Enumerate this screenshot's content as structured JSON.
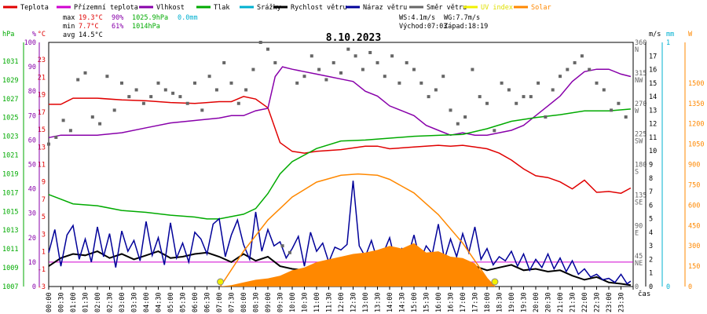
{
  "colors": {
    "teplota": "#e00000",
    "prizemni": "#d000d0",
    "vlhkost": "#8800aa",
    "tlak": "#00aa00",
    "srazky": "#00b0d0",
    "rychlost": "#000000",
    "naraz": "#000099",
    "smer": "#666666",
    "uv": "#f0f000",
    "solar": "#ff8800"
  },
  "legend": [
    {
      "label": "Teplota",
      "color": "#e00000"
    },
    {
      "label": "Přízemní teplota",
      "color": "#d000d0"
    },
    {
      "label": "Vlhkost",
      "color": "#8800aa"
    },
    {
      "label": "Tlak",
      "color": "#00aa00"
    },
    {
      "label": "Srážky",
      "color": "#00b0d0"
    },
    {
      "label": "Rychlost větru",
      "color": "#000000"
    },
    {
      "label": "Náraz větru",
      "color": "#000099"
    },
    {
      "label": "Směr větru",
      "color": "#666666"
    },
    {
      "label": "UV index",
      "color": "#f0f000"
    },
    {
      "label": "Solar",
      "color": "#ff8800"
    }
  ],
  "stats": {
    "max_label": "max",
    "max_temp": "19.3°C",
    "max_hum": "90%",
    "max_press": "1025.9hPa",
    "max_rain": "0.0mm",
    "min_label": "min",
    "min_temp": "7.7°C",
    "min_hum": "61%",
    "min_press": "1014hPa",
    "avg_label": "avg",
    "avg_temp": "14.5°C"
  },
  "wind_info": {
    "ws": "WS:4.1m/s",
    "wg": "WG:7.7m/s",
    "sunrise": "Východ:07:03",
    "sunset": "Západ:18:19"
  },
  "chart_data": {
    "type": "line",
    "title": "8.10.2023",
    "x_unit": "čas",
    "x_ticks": [
      "00:00",
      "00:30",
      "01:00",
      "01:30",
      "02:00",
      "02:30",
      "03:00",
      "03:30",
      "04:00",
      "04:30",
      "05:00",
      "05:30",
      "06:00",
      "06:30",
      "07:00",
      "07:30",
      "08:00",
      "08:30",
      "09:00",
      "09:30",
      "10:00",
      "10:30",
      "11:00",
      "11:30",
      "12:00",
      "12:30",
      "13:00",
      "13:30",
      "14:00",
      "14:30",
      "15:00",
      "15:30",
      "16:00",
      "16:30",
      "17:00",
      "17:30",
      "18:00",
      "18:30",
      "19:00",
      "19:30",
      "20:00",
      "20:30",
      "21:00",
      "21:30",
      "22:00",
      "22:30",
      "23:00",
      "23:30"
    ],
    "axes": {
      "pressure": {
        "label": "hPa",
        "range": [
          1007,
          1033
        ],
        "ticks": [
          "1031",
          "1029",
          "1027",
          "1025",
          "1023",
          "1021",
          "1019",
          "1017",
          "1015",
          "1013",
          "1011",
          "1009",
          "1007"
        ],
        "color": "#00aa00"
      },
      "humidity": {
        "label": "%",
        "range": [
          0,
          100
        ],
        "ticks": [
          "100",
          "90",
          "80",
          "70",
          "60",
          "50",
          "40",
          "30",
          "20",
          "10",
          "0"
        ],
        "color": "#8800aa"
      },
      "temperature": {
        "label": "°C",
        "range": [
          -3,
          25
        ],
        "ticks": [
          "23",
          "21",
          "19",
          "17",
          "15",
          "13",
          "11",
          "9",
          "7",
          "5",
          "3",
          "1",
          "-1",
          "-3"
        ],
        "color": "#e00000"
      },
      "wind_dir": {
        "range": [
          0,
          360
        ],
        "ticks": [
          "360\nN",
          "315\nNW",
          "270\nW",
          "225\nSW",
          "180\nS",
          "135\nSE",
          "90\nE",
          "45\nNE",
          "0"
        ],
        "color": "#666666"
      },
      "wind_speed": {
        "label": "m/s",
        "range": [
          0,
          18
        ],
        "ticks": [
          "17",
          "16",
          "15",
          "14",
          "13",
          "12",
          "11",
          "10",
          "9",
          "8",
          "7",
          "6",
          "5",
          "4",
          "3",
          "2",
          "1",
          "0"
        ],
        "color": "#000000"
      },
      "rain": {
        "label": "mm",
        "range": [
          0,
          1
        ],
        "ticks": [
          "1",
          "0"
        ],
        "color": "#00b0d0"
      },
      "solar": {
        "label": "W",
        "range": [
          0,
          1800
        ],
        "ticks": [
          "1500",
          "1350",
          "1200",
          "1050",
          "900",
          "750",
          "600",
          "450",
          "300",
          "150",
          "0"
        ],
        "color": "#ff8800"
      }
    },
    "series": [
      {
        "name": "Teplota",
        "axis": "temperature",
        "color": "#e00000",
        "x": [
          0,
          0.5,
          1,
          2,
          3,
          4,
          5,
          6,
          7,
          7.5,
          8,
          8.5,
          9,
          9.5,
          10,
          10.5,
          11,
          12,
          13,
          13.5,
          14,
          15,
          16,
          16.5,
          17,
          17.5,
          18,
          18.5,
          19,
          19.5,
          20,
          20.5,
          21,
          21.5,
          22,
          22.5,
          23,
          23.5,
          23.9
        ],
        "y": [
          17.9,
          17.9,
          18.6,
          18.6,
          18.4,
          18.3,
          18.1,
          18.0,
          18.2,
          18.2,
          18.8,
          18.5,
          17.5,
          13.5,
          12.5,
          12.3,
          12.5,
          12.7,
          13.1,
          13.1,
          12.8,
          13.0,
          13.2,
          13.1,
          13.2,
          13.0,
          12.8,
          12.3,
          11.5,
          10.5,
          9.7,
          9.5,
          9.0,
          8.2,
          9.2,
          7.8,
          7.9,
          7.7,
          8.3
        ]
      },
      {
        "name": "Vlhkost",
        "axis": "humidity",
        "color": "#8800aa",
        "x": [
          0,
          0.5,
          1,
          2,
          3,
          4,
          5,
          6,
          7,
          7.5,
          8,
          8.5,
          9,
          9.3,
          9.6,
          10,
          10.5,
          11,
          11.5,
          12,
          12.5,
          13,
          13.5,
          14,
          14.5,
          15,
          15.5,
          16,
          16.5,
          17,
          17.5,
          18,
          18.5,
          19,
          19.5,
          20,
          20.5,
          21,
          21.5,
          22,
          22.5,
          23,
          23.5,
          23.9
        ],
        "y": [
          61,
          62,
          62,
          62,
          63,
          65,
          67,
          68,
          69,
          70,
          70,
          72,
          73,
          86,
          90,
          89,
          88,
          87,
          86,
          85,
          84,
          80,
          78,
          74,
          72,
          70,
          66,
          64,
          62,
          63,
          62,
          62,
          63,
          64,
          66,
          70,
          74,
          78,
          84,
          88,
          89,
          89,
          87,
          86
        ]
      },
      {
        "name": "Tlak",
        "axis": "pressure",
        "color": "#00aa00",
        "x": [
          0,
          1,
          2,
          3,
          4,
          5,
          6,
          6.5,
          7,
          8,
          8.5,
          9,
          9.5,
          10,
          10.5,
          11,
          12,
          13,
          14,
          15,
          16,
          17,
          18,
          19,
          20,
          21,
          22,
          23,
          23.9
        ],
        "y": [
          1016.8,
          1015.8,
          1015.6,
          1015.1,
          1014.9,
          1014.6,
          1014.4,
          1014.2,
          1014.2,
          1014.7,
          1015.3,
          1016.9,
          1019.0,
          1020.3,
          1021.0,
          1021.7,
          1022.5,
          1022.6,
          1022.8,
          1023.0,
          1023.1,
          1023.2,
          1023.8,
          1024.6,
          1025.0,
          1025.3,
          1025.7,
          1025.7,
          1025.9
        ]
      },
      {
        "name": "Rychlost větru",
        "axis": "wind_speed",
        "color": "#000000",
        "x": [
          0,
          0.5,
          1,
          1.5,
          2,
          2.5,
          3,
          3.5,
          4,
          4.5,
          5,
          5.5,
          6,
          6.5,
          7,
          7.5,
          8,
          8.5,
          9,
          9.5,
          10,
          10.5,
          11,
          11.5,
          12,
          12.5,
          13,
          13.5,
          14,
          14.5,
          15,
          15.5,
          16,
          16.5,
          17,
          17.5,
          18,
          18.5,
          19,
          19.5,
          20,
          20.5,
          21,
          21.5,
          22,
          22.5,
          23,
          23.5,
          23.9
        ],
        "y": [
          1.5,
          2.1,
          2.4,
          2.3,
          2.6,
          2.1,
          2.4,
          2.0,
          2.3,
          2.6,
          2.1,
          2.2,
          2.4,
          2.5,
          2.2,
          1.8,
          2.4,
          1.9,
          2.2,
          1.5,
          1.3,
          1.2,
          1.4,
          1.1,
          1.5,
          1.4,
          1.6,
          1.3,
          1.4,
          1.6,
          1.2,
          1.8,
          1.4,
          1.6,
          1.3,
          1.5,
          1.2,
          1.4,
          1.6,
          1.2,
          1.3,
          1.1,
          1.2,
          0.8,
          0.5,
          0.7,
          0.3,
          0.2,
          0.1
        ]
      },
      {
        "name": "Náraz větru",
        "axis": "wind_speed",
        "color": "#000099",
        "x": [
          0,
          0.25,
          0.5,
          0.75,
          1,
          1.25,
          1.5,
          1.75,
          2,
          2.25,
          2.5,
          2.75,
          3,
          3.25,
          3.5,
          3.75,
          4,
          4.25,
          4.5,
          4.75,
          5,
          5.25,
          5.5,
          5.75,
          6,
          6.25,
          6.5,
          6.75,
          7,
          7.25,
          7.5,
          7.75,
          8,
          8.25,
          8.5,
          8.75,
          9,
          9.25,
          9.5,
          9.75,
          10,
          10.25,
          10.5,
          10.75,
          11,
          11.25,
          11.5,
          11.75,
          12,
          12.25,
          12.5,
          12.75,
          13,
          13.25,
          13.5,
          13.75,
          14,
          14.25,
          14.5,
          14.75,
          15,
          15.25,
          15.5,
          15.75,
          16,
          16.25,
          16.5,
          16.75,
          17,
          17.25,
          17.5,
          17.75,
          18,
          18.25,
          18.5,
          18.75,
          19,
          19.25,
          19.5,
          19.75,
          20,
          20.25,
          20.5,
          20.75,
          21,
          21.25,
          21.5,
          21.75,
          22,
          22.25,
          22.5,
          22.75,
          23,
          23.25,
          23.5,
          23.75,
          23.9
        ],
        "y": [
          2.5,
          4.2,
          1.5,
          3.8,
          4.5,
          2.0,
          3.5,
          1.8,
          4.4,
          2.2,
          3.9,
          1.4,
          4.1,
          2.6,
          3.4,
          1.9,
          4.8,
          2.3,
          3.6,
          1.6,
          4.7,
          2.1,
          3.2,
          1.8,
          4.0,
          3.5,
          2.4,
          4.6,
          5.0,
          2.2,
          3.8,
          4.9,
          3.1,
          2.0,
          5.5,
          2.6,
          4.2,
          3.0,
          3.3,
          2.1,
          2.8,
          3.7,
          1.5,
          4.0,
          2.6,
          3.2,
          1.8,
          2.9,
          2.7,
          3.1,
          7.8,
          3.0,
          2.2,
          3.4,
          1.9,
          2.5,
          3.6,
          1.7,
          2.8,
          2.2,
          3.8,
          1.9,
          3.0,
          2.4,
          4.6,
          2.0,
          3.5,
          2.2,
          3.9,
          2.5,
          4.4,
          2.0,
          2.8,
          1.6,
          2.2,
          1.9,
          2.6,
          1.5,
          2.4,
          1.2,
          2.0,
          1.4,
          2.4,
          1.3,
          2.1,
          1.1,
          1.9,
          0.9,
          1.3,
          0.7,
          0.9,
          0.5,
          0.6,
          0.3,
          0.9,
          0.2,
          0.4
        ]
      },
      {
        "name": "Směr větru",
        "axis": "wind_dir",
        "color": "#666666",
        "type": "scatter",
        "x": [
          0,
          0.3,
          0.6,
          0.9,
          1.2,
          1.5,
          1.8,
          2.1,
          2.4,
          2.7,
          3.0,
          3.3,
          3.6,
          3.9,
          4.2,
          4.5,
          4.8,
          5.1,
          5.4,
          5.7,
          6.0,
          6.3,
          6.6,
          6.9,
          7.2,
          7.5,
          7.8,
          8.1,
          8.4,
          8.7,
          9.0,
          9.3,
          9.6,
          9.9,
          10.2,
          10.5,
          10.8,
          11.1,
          11.4,
          11.7,
          12.0,
          12.3,
          12.6,
          12.9,
          13.2,
          13.5,
          13.8,
          14.1,
          14.4,
          14.7,
          15.0,
          15.3,
          15.6,
          15.9,
          16.2,
          16.5,
          16.8,
          17.1,
          17.4,
          17.7,
          18.0,
          18.3,
          18.6,
          18.9,
          19.2,
          19.5,
          19.8,
          20.1,
          20.4,
          20.7,
          21.0,
          21.3,
          21.6,
          21.9,
          22.2,
          22.5,
          22.8,
          23.1,
          23.4,
          23.7
        ],
        "y": [
          210,
          220,
          245,
          230,
          305,
          315,
          250,
          240,
          310,
          260,
          300,
          280,
          290,
          270,
          280,
          300,
          290,
          285,
          280,
          270,
          300,
          260,
          310,
          290,
          330,
          300,
          270,
          290,
          320,
          360,
          350,
          330,
          60,
          50,
          300,
          310,
          340,
          320,
          305,
          330,
          315,
          350,
          340,
          320,
          345,
          330,
          310,
          340,
          300,
          330,
          320,
          300,
          280,
          290,
          310,
          260,
          240,
          250,
          320,
          280,
          270,
          230,
          300,
          290,
          270,
          280,
          280,
          300,
          250,
          290,
          310,
          320,
          330,
          340,
          320,
          300,
          290,
          260,
          270,
          250
        ]
      },
      {
        "name": "Solar",
        "axis": "solar",
        "color": "#ff8800",
        "type": "area",
        "x": [
          7.0,
          7.5,
          8.0,
          8.5,
          9.0,
          9.5,
          10.0,
          10.5,
          11.0,
          11.5,
          12.0,
          12.5,
          13.0,
          13.5,
          14.0,
          14.5,
          15.0,
          15.5,
          16.0,
          16.5,
          17.0,
          17.5,
          18.0,
          18.3
        ],
        "y": [
          0,
          10,
          30,
          50,
          60,
          80,
          120,
          140,
          180,
          200,
          220,
          240,
          250,
          270,
          300,
          280,
          320,
          250,
          260,
          220,
          210,
          170,
          60,
          0
        ]
      },
      {
        "name": "Solar (max)",
        "axis": "solar",
        "color": "#ff8800",
        "x": [
          7.05,
          8,
          9,
          10,
          11,
          12,
          12.7,
          13.5,
          14,
          15,
          16,
          17,
          18,
          18.32
        ],
        "y": [
          0,
          260,
          490,
          660,
          770,
          820,
          830,
          820,
          790,
          690,
          530,
          320,
          60,
          0
        ]
      }
    ]
  }
}
